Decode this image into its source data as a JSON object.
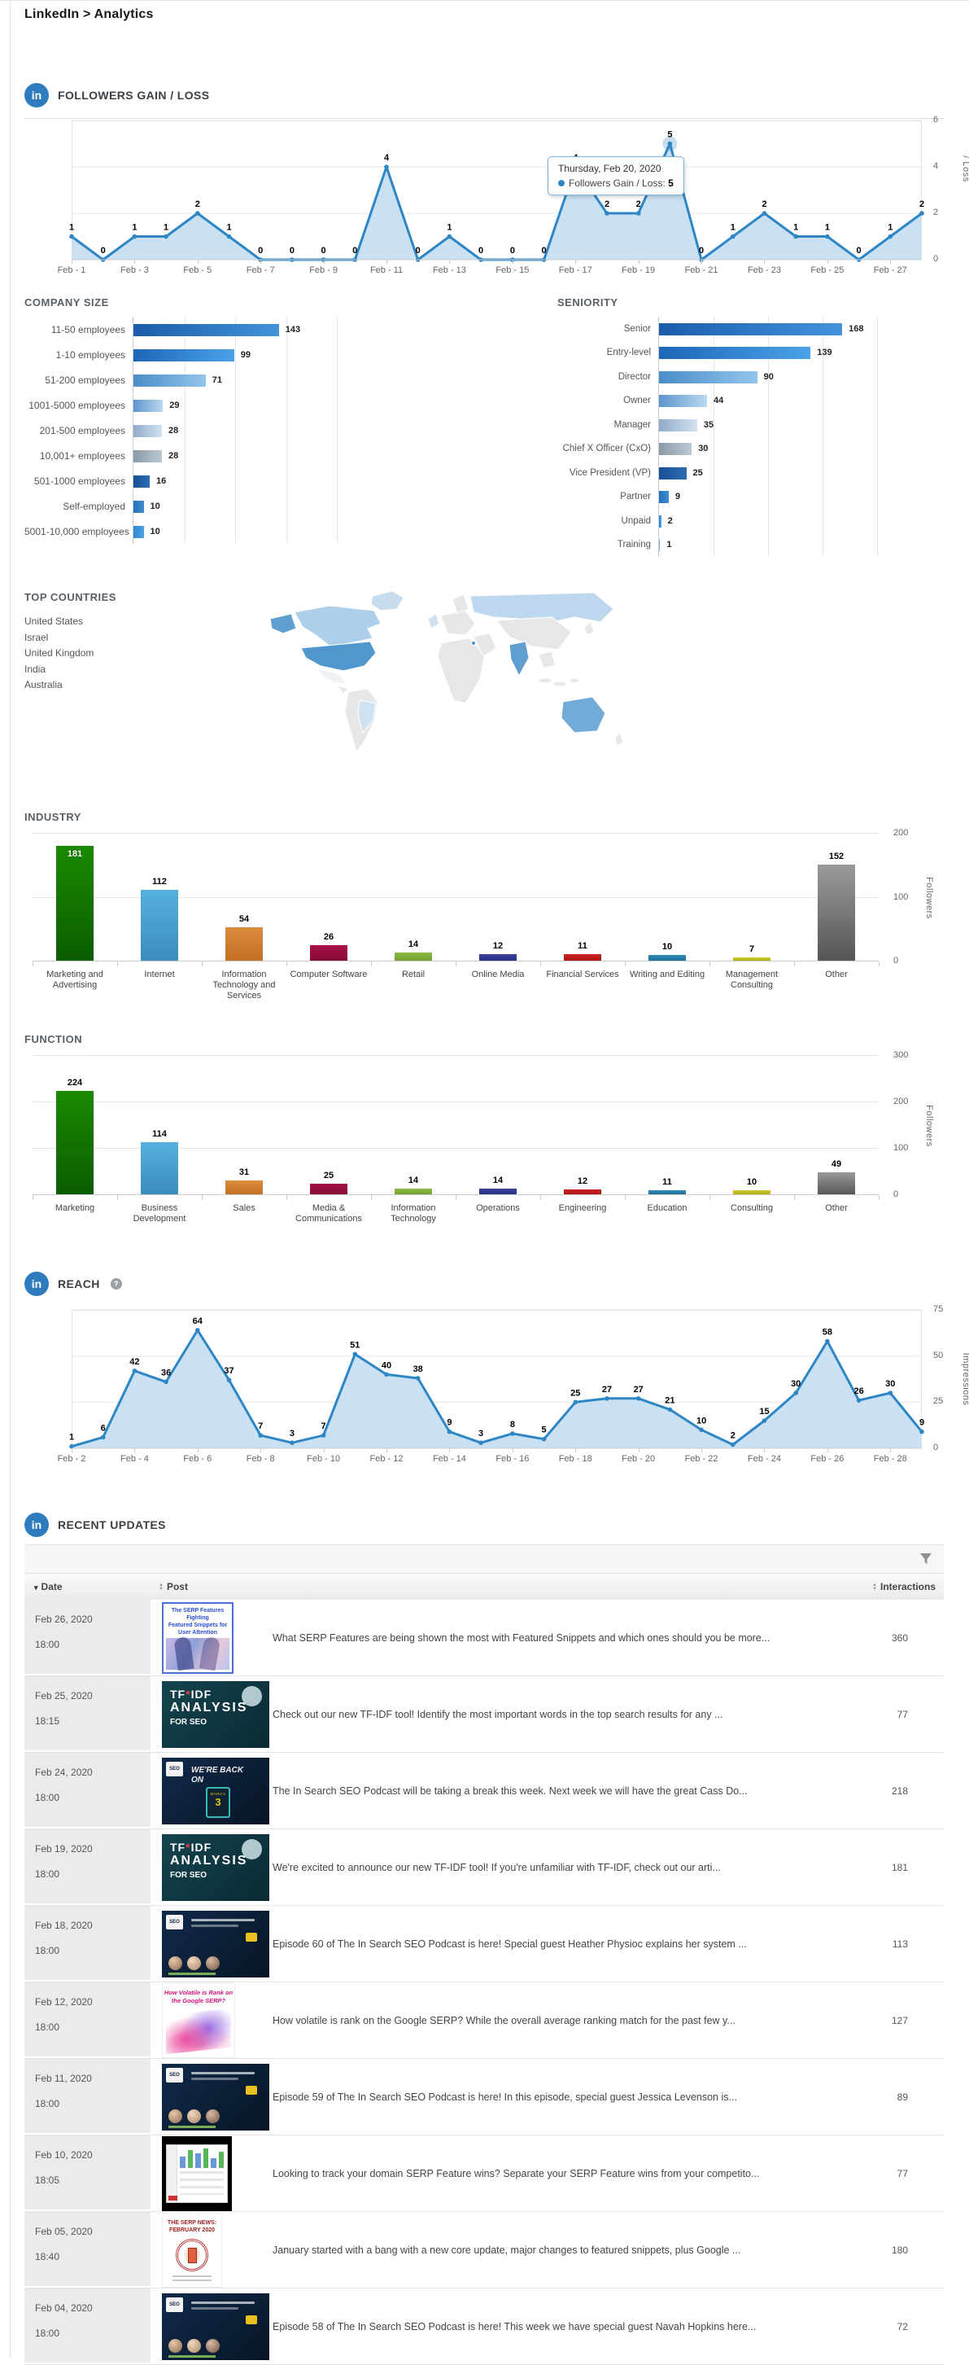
{
  "page": {
    "breadcrumb": "LinkedIn > Analytics",
    "icon_text": "in"
  },
  "colors": {
    "linkedin_blue": "#2e7cbd",
    "line_stroke": "#2e86c4",
    "area_fill": "#c9e1f3",
    "grid": "#e6e6e6"
  },
  "sections": {
    "followers": {
      "title": "FOLLOWERS GAIN / LOSS"
    },
    "company_size": {
      "title": "COMPANY SIZE"
    },
    "seniority": {
      "title": "SENIORITY"
    },
    "top_countries": {
      "title": "TOP COUNTRIES",
      "countries": [
        "United States",
        "Israel",
        "United Kingdom",
        "India",
        "Australia"
      ]
    },
    "industry": {
      "title": "INDUSTRY"
    },
    "function": {
      "title": "FUNCTION"
    },
    "reach": {
      "title": "REACH",
      "help": "?"
    },
    "recent_updates": {
      "title": "RECENT UPDATES"
    }
  },
  "chart_data": [
    {
      "id": "followers_gain_loss",
      "type": "area",
      "title": "FOLLOWERS GAIN / LOSS",
      "categories": [
        "Feb - 1",
        "Feb - 2",
        "Feb - 3",
        "Feb - 4",
        "Feb - 5",
        "Feb - 6",
        "Feb - 7",
        "Feb - 8",
        "Feb - 9",
        "Feb - 10",
        "Feb - 11",
        "Feb - 12",
        "Feb - 13",
        "Feb - 14",
        "Feb - 15",
        "Feb - 16",
        "Feb - 17",
        "Feb - 18",
        "Feb - 19",
        "Feb - 20",
        "Feb - 21",
        "Feb - 22",
        "Feb - 23",
        "Feb - 24",
        "Feb - 25",
        "Feb - 26",
        "Feb - 27",
        "Feb - 28"
      ],
      "values": [
        1,
        0,
        1,
        1,
        2,
        1,
        0,
        0,
        0,
        0,
        4,
        0,
        1,
        0,
        0,
        0,
        4,
        2,
        2,
        5,
        0,
        1,
        2,
        1,
        1,
        0,
        1,
        2
      ],
      "xticks": [
        "Feb - 1",
        "Feb - 3",
        "Feb - 5",
        "Feb - 7",
        "Feb - 9",
        "Feb - 11",
        "Feb - 13",
        "Feb - 15",
        "Feb - 17",
        "Feb - 19",
        "Feb - 21",
        "Feb - 23",
        "Feb - 25",
        "Feb - 27"
      ],
      "yticks": [
        0,
        2,
        4,
        6
      ],
      "ylim": [
        0,
        6
      ],
      "ylabel": "Followers Gain / Loss",
      "grid": true,
      "legend": "none",
      "tooltip": {
        "title": "Thursday, Feb 20, 2020",
        "series": "Followers Gain / Loss",
        "value": 5,
        "point_index": 19
      }
    },
    {
      "id": "company_size",
      "type": "bar",
      "title": "COMPANY SIZE",
      "categories": [
        "11-50 employees",
        "1-10 employees",
        "51-200 employees",
        "1001-5000 employees",
        "201-500 employees",
        "10,001+ employees",
        "501-1000 employees",
        "Self-employed",
        "5001-10,000 employees"
      ],
      "values": [
        143,
        99,
        71,
        29,
        28,
        28,
        16,
        10,
        10
      ],
      "xlim": [
        0,
        200
      ],
      "bar_colors": [
        [
          "#1b5cab",
          "#4293dc"
        ],
        [
          "#1e66b8",
          "#4aa2e8"
        ],
        [
          "#4a8dc8",
          "#93c5ec"
        ],
        [
          "#5d94cc",
          "#bad9f1"
        ],
        [
          "#8fabc9",
          "#d2e2f1"
        ],
        [
          "#8b9aa7",
          "#bac9d4"
        ],
        [
          "#174f96",
          "#2d6cb4"
        ],
        [
          "#2470bc",
          "#3f8cd2"
        ],
        [
          "#2e86d0",
          "#4da2e8"
        ]
      ]
    },
    {
      "id": "seniority",
      "type": "bar",
      "title": "SENIORITY",
      "categories": [
        "Senior",
        "Entry-level",
        "Director",
        "Owner",
        "Manager",
        "Chief X Officer (CxO)",
        "Vice President (VP)",
        "Partner",
        "Unpaid",
        "Training"
      ],
      "values": [
        168,
        139,
        90,
        44,
        35,
        30,
        25,
        9,
        2,
        1
      ],
      "xlim": [
        0,
        200
      ],
      "bar_colors": [
        [
          "#1b5cab",
          "#4293dc"
        ],
        [
          "#1e66b8",
          "#4aa2e8"
        ],
        [
          "#4a8dc8",
          "#93c5ec"
        ],
        [
          "#5d94cc",
          "#bad9f1"
        ],
        [
          "#8fabc9",
          "#d2e2f1"
        ],
        [
          "#8b9aa7",
          "#bac9d4"
        ],
        [
          "#174f96",
          "#2d6cb4"
        ],
        [
          "#2470bc",
          "#3f8cd2"
        ],
        [
          "#2e86d0",
          "#4da2e8"
        ],
        [
          "#5aa8e0",
          "#8cc6ee"
        ]
      ]
    },
    {
      "id": "industry",
      "type": "column",
      "title": "INDUSTRY",
      "categories": [
        "Marketing and Advertising",
        "Internet",
        "Information Technology and Services",
        "Computer Software",
        "Retail",
        "Online Media",
        "Financial Services",
        "Writing and Editing",
        "Management Consulting",
        "Other"
      ],
      "values": [
        181,
        112,
        54,
        26,
        14,
        12,
        11,
        10,
        7,
        152
      ],
      "yticks": [
        0,
        100,
        200
      ],
      "ylim": [
        0,
        200
      ],
      "ylabel": "Followers",
      "bar_colors": [
        [
          "#1a8a00",
          "#0b5c00"
        ],
        [
          "#56b1e0",
          "#3a8cba"
        ],
        [
          "#dd8c3c",
          "#c06f24"
        ],
        [
          "#a81048",
          "#830c38"
        ],
        [
          "#8cbb44",
          "#6e9c2e"
        ],
        [
          "#3a3f9e",
          "#292e7e"
        ],
        [
          "#cc2222",
          "#a51717"
        ],
        [
          "#2e8cb4",
          "#1e6c94"
        ],
        [
          "#cccc2e",
          "#a8a818"
        ],
        [
          "#9a9a9a",
          "#555555"
        ]
      ]
    },
    {
      "id": "function",
      "type": "column",
      "title": "FUNCTION",
      "categories": [
        "Marketing",
        "Business Development",
        "Sales",
        "Media & Communications",
        "Information Technology",
        "Operations",
        "Engineering",
        "Education",
        "Consulting",
        "Other"
      ],
      "values": [
        224,
        114,
        31,
        25,
        14,
        14,
        12,
        11,
        10,
        49
      ],
      "yticks": [
        0,
        100,
        200,
        300
      ],
      "ylim": [
        0,
        300
      ],
      "ylabel": "Followers",
      "bar_colors": [
        [
          "#1a8a00",
          "#0b5c00"
        ],
        [
          "#56b1e0",
          "#3a8cba"
        ],
        [
          "#dd8c3c",
          "#c06f24"
        ],
        [
          "#a81048",
          "#830c38"
        ],
        [
          "#8cbb44",
          "#6e9c2e"
        ],
        [
          "#3a3f9e",
          "#292e7e"
        ],
        [
          "#cc2222",
          "#a51717"
        ],
        [
          "#2e8cb4",
          "#1e6c94"
        ],
        [
          "#cccc2e",
          "#a8a818"
        ],
        [
          "#9a9a9a",
          "#555555"
        ]
      ]
    },
    {
      "id": "reach",
      "type": "area",
      "title": "REACH",
      "categories": [
        "Feb - 2",
        "Feb - 3",
        "Feb - 4",
        "Feb - 5",
        "Feb - 6",
        "Feb - 7",
        "Feb - 8",
        "Feb - 9",
        "Feb - 10",
        "Feb - 11",
        "Feb - 12",
        "Feb - 13",
        "Feb - 14",
        "Feb - 15",
        "Feb - 16",
        "Feb - 17",
        "Feb - 18",
        "Feb - 19",
        "Feb - 20",
        "Feb - 21",
        "Feb - 22",
        "Feb - 23",
        "Feb - 24",
        "Feb - 25",
        "Feb - 26",
        "Feb - 27",
        "Feb - 28",
        "Feb - 29"
      ],
      "values": [
        1,
        6,
        42,
        36,
        64,
        37,
        7,
        3,
        7,
        51,
        40,
        38,
        9,
        3,
        8,
        5,
        25,
        27,
        27,
        21,
        10,
        2,
        15,
        30,
        58,
        26,
        30,
        9
      ],
      "xticks": [
        "Feb - 2",
        "Feb - 4",
        "Feb - 6",
        "Feb - 8",
        "Feb - 10",
        "Feb - 12",
        "Feb - 14",
        "Feb - 16",
        "Feb - 18",
        "Feb - 20",
        "Feb - 22",
        "Feb - 24",
        "Feb - 26",
        "Feb - 28"
      ],
      "yticks": [
        0,
        25,
        50,
        75
      ],
      "ylim": [
        0,
        75
      ],
      "ylabel": "Impressions",
      "grid": true,
      "legend": "none"
    }
  ],
  "table": {
    "columns": [
      {
        "label": "Date",
        "sort": "desc"
      },
      {
        "label": "Post",
        "sort": "both"
      },
      {
        "label": "Interactions",
        "sort": "both"
      }
    ],
    "rows": [
      {
        "date": "Feb 26, 2020",
        "time": "18:00",
        "post": "What SERP Features are being shown the most with Featured Snippets and which ones should you be more...",
        "interactions": 360,
        "thumb": {
          "type": "serp-fighting",
          "lines": [
            "The SERP Features Fighting",
            "Featured Snippets for User Attention"
          ]
        }
      },
      {
        "date": "Feb 25, 2020",
        "time": "18:15",
        "post": "Check out our new TF-IDF tool! Identify the most important words in the top search results for any ...",
        "interactions": 77,
        "thumb": {
          "type": "tfidf",
          "lines": [
            "TF*IDF",
            "ANALYSIS",
            "FOR SEO"
          ]
        }
      },
      {
        "date": "Feb 24, 2020",
        "time": "18:00",
        "post": "The In Search SEO Podcast will be taking a break this week. Next week we will have the great Cass Do...",
        "interactions": 218,
        "thumb": {
          "type": "back-on",
          "logo": "SEO",
          "lines": [
            "WE'RE BACK ON",
            "MARCH",
            "3"
          ]
        }
      },
      {
        "date": "Feb 19, 2020",
        "time": "18:00",
        "post": "We're excited to announce our new TF-IDF tool! If you're unfamiliar with TF-IDF, check out our arti...",
        "interactions": 181,
        "thumb": {
          "type": "tfidf",
          "lines": [
            "TF*IDF",
            "ANALYSIS",
            "FOR SEO"
          ]
        }
      },
      {
        "date": "Feb 18, 2020",
        "time": "18:00",
        "post": "Episode 60 of The In Search SEO Podcast is here! Special guest Heather Physioc explains her system ...",
        "interactions": 113,
        "thumb": {
          "type": "podcast",
          "logo": "SEO",
          "lines": []
        }
      },
      {
        "date": "Feb 12, 2020",
        "time": "18:00",
        "post": "How volatile is rank on the Google SERP? While the overall average ranking match for the past few y...",
        "interactions": 127,
        "thumb": {
          "type": "volatile",
          "lines": [
            "How Volatile is Rank on",
            "the Google SERP?"
          ]
        }
      },
      {
        "date": "Feb 11, 2020",
        "time": "18:00",
        "post": "Episode 59 of The In Search SEO Podcast is here! In this episode, special guest Jessica Levenson is...",
        "interactions": 89,
        "thumb": {
          "type": "podcast",
          "logo": "SEO",
          "lines": []
        }
      },
      {
        "date": "Feb 10, 2020",
        "time": "18:05",
        "post": "Looking to track your domain SERP Feature wins? Separate your SERP Feature wins from your competito...",
        "interactions": 77,
        "thumb": {
          "type": "screenshot",
          "lines": []
        }
      },
      {
        "date": "Feb 05, 2020",
        "time": "18:40",
        "post": "January started with a bang with a new core update, major changes to featured snippets, plus Google ...",
        "interactions": 180,
        "thumb": {
          "type": "serp-news",
          "lines": [
            "THE SERP NEWS:",
            "FEBRUARY 2020"
          ]
        }
      },
      {
        "date": "Feb 04, 2020",
        "time": "18:00",
        "post": "Episode 58 of The In Search SEO Podcast is here! This week we have special guest Navah Hopkins here...",
        "interactions": 72,
        "thumb": {
          "type": "podcast",
          "logo": "SEO",
          "lines": []
        }
      }
    ]
  }
}
